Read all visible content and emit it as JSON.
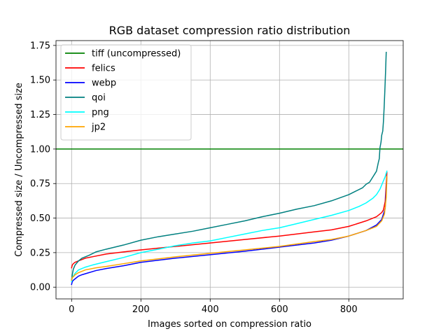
{
  "chart_data": {
    "type": "line",
    "title": "RGB dataset compression ratio distribution",
    "xlabel": "Images sorted on compression ratio",
    "ylabel": "Compressed size / Uncompressed size",
    "xlim": [
      -45,
      957
    ],
    "ylim": [
      -0.085,
      1.785
    ],
    "xticks": [
      0,
      200,
      400,
      600,
      800
    ],
    "xtick_labels": [
      "0",
      "200",
      "400",
      "600",
      "800"
    ],
    "yticks": [
      0.0,
      0.25,
      0.5,
      0.75,
      1.0,
      1.25,
      1.5,
      1.75
    ],
    "ytick_labels": [
      "0.00",
      "0.25",
      "0.50",
      "0.75",
      "1.00",
      "1.25",
      "1.50",
      "1.75"
    ],
    "grid": true,
    "legend_position": "top-left",
    "series": [
      {
        "name": "tiff (uncompressed)",
        "color": "#008000",
        "x": [
          -45,
          957
        ],
        "y": [
          1.0,
          1.0
        ]
      },
      {
        "name": "felics",
        "color": "#ff0000",
        "x": [
          0,
          2,
          5,
          10,
          20,
          40,
          60,
          100,
          150,
          200,
          300,
          400,
          500,
          600,
          700,
          750,
          800,
          850,
          880,
          895,
          900,
          905,
          910
        ],
        "y": [
          0.14,
          0.16,
          0.17,
          0.18,
          0.19,
          0.21,
          0.22,
          0.24,
          0.255,
          0.27,
          0.295,
          0.32,
          0.345,
          0.37,
          0.4,
          0.415,
          0.44,
          0.48,
          0.51,
          0.54,
          0.56,
          0.62,
          0.83
        ]
      },
      {
        "name": "webp",
        "color": "#0000ff",
        "x": [
          0,
          2,
          5,
          10,
          20,
          30,
          50,
          70,
          100,
          150,
          200,
          300,
          400,
          500,
          600,
          700,
          750,
          800,
          850,
          880,
          895,
          905,
          910
        ],
        "y": [
          0.02,
          0.04,
          0.05,
          0.06,
          0.08,
          0.09,
          0.105,
          0.12,
          0.135,
          0.155,
          0.18,
          0.21,
          0.235,
          0.26,
          0.29,
          0.32,
          0.34,
          0.37,
          0.41,
          0.45,
          0.49,
          0.57,
          0.8
        ]
      },
      {
        "name": "qoi",
        "color": "#008080",
        "x": [
          0,
          2,
          5,
          10,
          20,
          30,
          50,
          70,
          100,
          150,
          200,
          250,
          300,
          350,
          400,
          450,
          500,
          550,
          600,
          650,
          700,
          750,
          800,
          820,
          840,
          850,
          860,
          870,
          875,
          880,
          885,
          888,
          890,
          893,
          895,
          898,
          900,
          902,
          904,
          906,
          908
        ],
        "y": [
          0.05,
          0.09,
          0.13,
          0.16,
          0.19,
          0.21,
          0.23,
          0.255,
          0.275,
          0.305,
          0.34,
          0.365,
          0.385,
          0.405,
          0.43,
          0.455,
          0.48,
          0.51,
          0.535,
          0.565,
          0.59,
          0.625,
          0.67,
          0.695,
          0.72,
          0.745,
          0.76,
          0.8,
          0.82,
          0.84,
          0.9,
          0.93,
          1.01,
          1.05,
          1.1,
          1.13,
          1.2,
          1.3,
          1.42,
          1.55,
          1.7
        ]
      },
      {
        "name": "png",
        "color": "#00ffff",
        "x": [
          0,
          2,
          5,
          10,
          20,
          40,
          60,
          100,
          150,
          200,
          250,
          300,
          350,
          400,
          450,
          500,
          550,
          600,
          650,
          700,
          750,
          800,
          830,
          850,
          870,
          880,
          890,
          895,
          900,
          905,
          910
        ],
        "y": [
          0.04,
          0.07,
          0.08,
          0.1,
          0.125,
          0.145,
          0.16,
          0.185,
          0.215,
          0.25,
          0.275,
          0.3,
          0.32,
          0.335,
          0.36,
          0.385,
          0.41,
          0.43,
          0.46,
          0.49,
          0.52,
          0.555,
          0.585,
          0.61,
          0.645,
          0.67,
          0.71,
          0.74,
          0.77,
          0.8,
          0.84
        ]
      },
      {
        "name": "jp2",
        "color": "#ffa500",
        "x": [
          0,
          2,
          5,
          10,
          20,
          40,
          70,
          100,
          150,
          200,
          300,
          400,
          500,
          600,
          700,
          750,
          800,
          850,
          880,
          895,
          903,
          908,
          910
        ],
        "y": [
          0.05,
          0.07,
          0.075,
          0.09,
          0.105,
          0.125,
          0.14,
          0.15,
          0.17,
          0.19,
          0.22,
          0.245,
          0.27,
          0.295,
          0.33,
          0.345,
          0.37,
          0.41,
          0.44,
          0.48,
          0.53,
          0.65,
          0.8
        ]
      }
    ]
  }
}
